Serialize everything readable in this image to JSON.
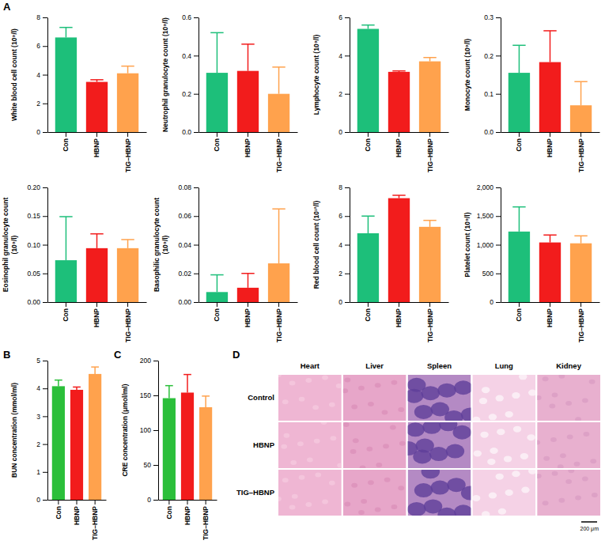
{
  "chart_data": [
    {
      "type": "bar",
      "panel": "A",
      "ylabel": "White blood cell count (10⁹/l)",
      "categories": [
        "Con",
        "HBNP",
        "TIG–HBNP"
      ],
      "values": [
        6.6,
        3.5,
        4.1
      ],
      "errors": [
        0.7,
        0.15,
        0.5
      ],
      "colors": [
        "#1dbf7a",
        "#f21c1c",
        "#ffa24d"
      ],
      "ylim": [
        0,
        8
      ],
      "yticks": [
        0,
        2,
        4,
        6,
        8
      ]
    },
    {
      "type": "bar",
      "ylabel": "Neutrophil granulocyte count (10⁹/l)",
      "categories": [
        "Con",
        "HBNP",
        "TIG–HBNP"
      ],
      "values": [
        0.31,
        0.32,
        0.2
      ],
      "errors": [
        0.21,
        0.14,
        0.14
      ],
      "colors": [
        "#1dbf7a",
        "#f21c1c",
        "#ffa24d"
      ],
      "ylim": [
        0,
        0.6
      ],
      "yticks": [
        {
          "value": 0,
          "label": "0.0"
        },
        0.2,
        0.4,
        0.6
      ]
    },
    {
      "type": "bar",
      "ylabel": "Lymphocyte count (10⁹/l)",
      "categories": [
        "Con",
        "HBNP",
        "TIG–HBNP"
      ],
      "values": [
        5.4,
        3.15,
        3.7
      ],
      "errors": [
        0.2,
        0.05,
        0.2
      ],
      "colors": [
        "#1dbf7a",
        "#f21c1c",
        "#ffa24d"
      ],
      "ylim": [
        0,
        6
      ],
      "yticks": [
        0,
        2,
        4,
        6
      ]
    },
    {
      "type": "bar",
      "ylabel": "Monocyte count (10⁹/l)",
      "categories": [
        "Con",
        "HBNP",
        "TIG–HBNP"
      ],
      "values": [
        0.155,
        0.183,
        0.07
      ],
      "errors": [
        0.072,
        0.082,
        0.062
      ],
      "colors": [
        "#1dbf7a",
        "#f21c1c",
        "#ffa24d"
      ],
      "ylim": [
        0,
        0.3
      ],
      "yticks": [
        {
          "value": 0,
          "label": "0.0"
        },
        0.1,
        0.2,
        0.3
      ]
    },
    {
      "type": "bar",
      "ylabel": "Eosinophil granulocyte count (10⁹/l)",
      "categories": [
        "Con",
        "HBNP",
        "TIG–HBNP"
      ],
      "values": [
        0.073,
        0.094,
        0.094
      ],
      "errors": [
        0.076,
        0.025,
        0.015
      ],
      "colors": [
        "#1dbf7a",
        "#f21c1c",
        "#ffa24d"
      ],
      "ylim": [
        0,
        0.2
      ],
      "yticks": [
        {
          "value": 0,
          "label": "0.00"
        },
        0.05,
        {
          "value": 0.1,
          "label": "0.10"
        },
        0.15,
        {
          "value": 0.2,
          "label": "0.20"
        }
      ]
    },
    {
      "type": "bar",
      "ylabel": "Basophilic granulocyte count (10⁹/l)",
      "categories": [
        "Con",
        "HBNP",
        "TIG–HBNP"
      ],
      "values": [
        0.007,
        0.01,
        0.027
      ],
      "errors": [
        0.012,
        0.01,
        0.038
      ],
      "colors": [
        "#1dbf7a",
        "#f21c1c",
        "#ffa24d"
      ],
      "ylim": [
        0,
        0.08
      ],
      "yticks": [
        {
          "value": 0,
          "label": "0.00"
        },
        0.02,
        0.04,
        0.06,
        0.08
      ]
    },
    {
      "type": "bar",
      "ylabel": "Red blood cell count (10¹²/l)",
      "categories": [
        "Con",
        "HBNP",
        "TIG–HBNP"
      ],
      "values": [
        4.8,
        7.25,
        5.25
      ],
      "errors": [
        1.2,
        0.2,
        0.45
      ],
      "colors": [
        "#1dbf7a",
        "#f21c1c",
        "#ffa24d"
      ],
      "ylim": [
        0,
        8
      ],
      "yticks": [
        0,
        2,
        4,
        6,
        8
      ]
    },
    {
      "type": "bar",
      "ylabel": "Platelet count (10⁹/l)",
      "categories": [
        "Con",
        "HBNP",
        "TIG–HBNP"
      ],
      "values": [
        1230,
        1040,
        1025
      ],
      "errors": [
        430,
        130,
        130
      ],
      "colors": [
        "#1dbf7a",
        "#f21c1c",
        "#ffa24d"
      ],
      "ylim": [
        0,
        2000
      ],
      "yticks": [
        0,
        500,
        {
          "value": 1000,
          "label": "1,000"
        },
        {
          "value": 1500,
          "label": "1,500"
        },
        {
          "value": 2000,
          "label": "2,000"
        }
      ]
    },
    {
      "type": "bar",
      "panel": "B",
      "ylabel": "BUN concentration (mmol/ml)",
      "categories": [
        "Con",
        "HBNP",
        "TIG–HBNP"
      ],
      "values": [
        4.08,
        3.95,
        4.52
      ],
      "errors": [
        0.22,
        0.1,
        0.25
      ],
      "colors": [
        "#2bbf3a",
        "#f21c1c",
        "#ffa24d"
      ],
      "ylim": [
        0,
        5
      ],
      "yticks": [
        0,
        1,
        2,
        3,
        4,
        5
      ]
    },
    {
      "type": "bar",
      "panel": "C",
      "ylabel": "CRE concentration (μmol/ml)",
      "categories": [
        "Con",
        "HBNP",
        "TIG–HBNP"
      ],
      "values": [
        146,
        154,
        133
      ],
      "errors": [
        18,
        26,
        16
      ],
      "colors": [
        "#2bbf3a",
        "#f21c1c",
        "#ffa24d"
      ],
      "ylim": [
        0,
        200
      ],
      "yticks": [
        0,
        50,
        100,
        150,
        200
      ]
    },
    {
      "type": "image_grid",
      "panel": "D",
      "columns": [
        "Heart",
        "Liver",
        "Spleen",
        "Lung",
        "Kidney"
      ],
      "rows": [
        "Control",
        "HBNP",
        "TIG–HBNP"
      ],
      "scale_bar": "200 μm"
    }
  ]
}
